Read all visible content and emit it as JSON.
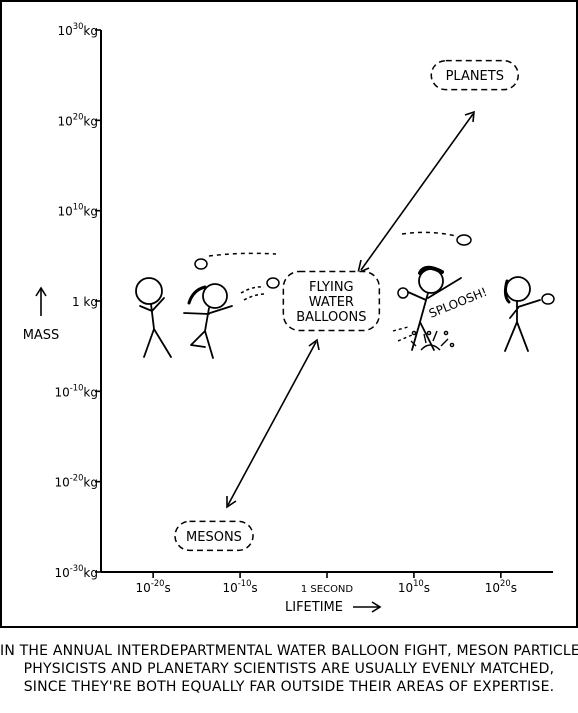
{
  "chart_data": {
    "type": "scatter",
    "x_axis": {
      "label": "LIFETIME",
      "scale": "log",
      "range_log10_seconds": [
        -26,
        26
      ],
      "ticks": [
        {
          "value_log10": -20,
          "base": "10",
          "exp": "-20",
          "unit": "s"
        },
        {
          "value_log10": -10,
          "base": "10",
          "exp": "-10",
          "unit": "s"
        },
        {
          "value_log10": 0,
          "text": "1 SECOND"
        },
        {
          "value_log10": 10,
          "base": "10",
          "exp": "10",
          "unit": "s"
        },
        {
          "value_log10": 20,
          "base": "10",
          "exp": "20",
          "unit": "s"
        }
      ]
    },
    "y_axis": {
      "label": "MASS",
      "scale": "log",
      "range_log10_kg": [
        -30,
        30
      ],
      "ticks": [
        {
          "value_log10": 30,
          "base": "10",
          "exp": "30",
          "unit": "kg"
        },
        {
          "value_log10": 20,
          "base": "10",
          "exp": "20",
          "unit": "kg"
        },
        {
          "value_log10": 10,
          "base": "10",
          "exp": "10",
          "unit": "kg"
        },
        {
          "value_log10": 0,
          "text": "1 kg"
        },
        {
          "value_log10": -10,
          "base": "10",
          "exp": "-10",
          "unit": "kg"
        },
        {
          "value_log10": -20,
          "base": "10",
          "exp": "-20",
          "unit": "kg"
        },
        {
          "value_log10": -30,
          "base": "10",
          "exp": "-30",
          "unit": "kg"
        }
      ]
    },
    "points": [
      {
        "lines": [
          "PLANETS"
        ],
        "lifetime_log10_s": 17,
        "mass_log10_kg": 25
      },
      {
        "lines": [
          "FLYING",
          "WATER",
          "BALLOONS"
        ],
        "lifetime_log10_s": 0.5,
        "mass_log10_kg": 0
      },
      {
        "lines": [
          "MESONS"
        ],
        "lifetime_log10_s": -13,
        "mass_log10_kg": -26
      }
    ],
    "annotations": {
      "sound_effect": "SPLOOSH!"
    }
  },
  "caption": [
    "IN THE ANNUAL INTERDEPARTMENTAL WATER BALLOON FIGHT, MESON PARTICLE",
    "PHYSICISTS AND PLANETARY SCIENTISTS ARE USUALLY EVENLY MATCHED,",
    "SINCE THEY'RE BOTH EQUALLY FAR OUTSIDE THEIR AREAS OF EXPERTISE."
  ]
}
